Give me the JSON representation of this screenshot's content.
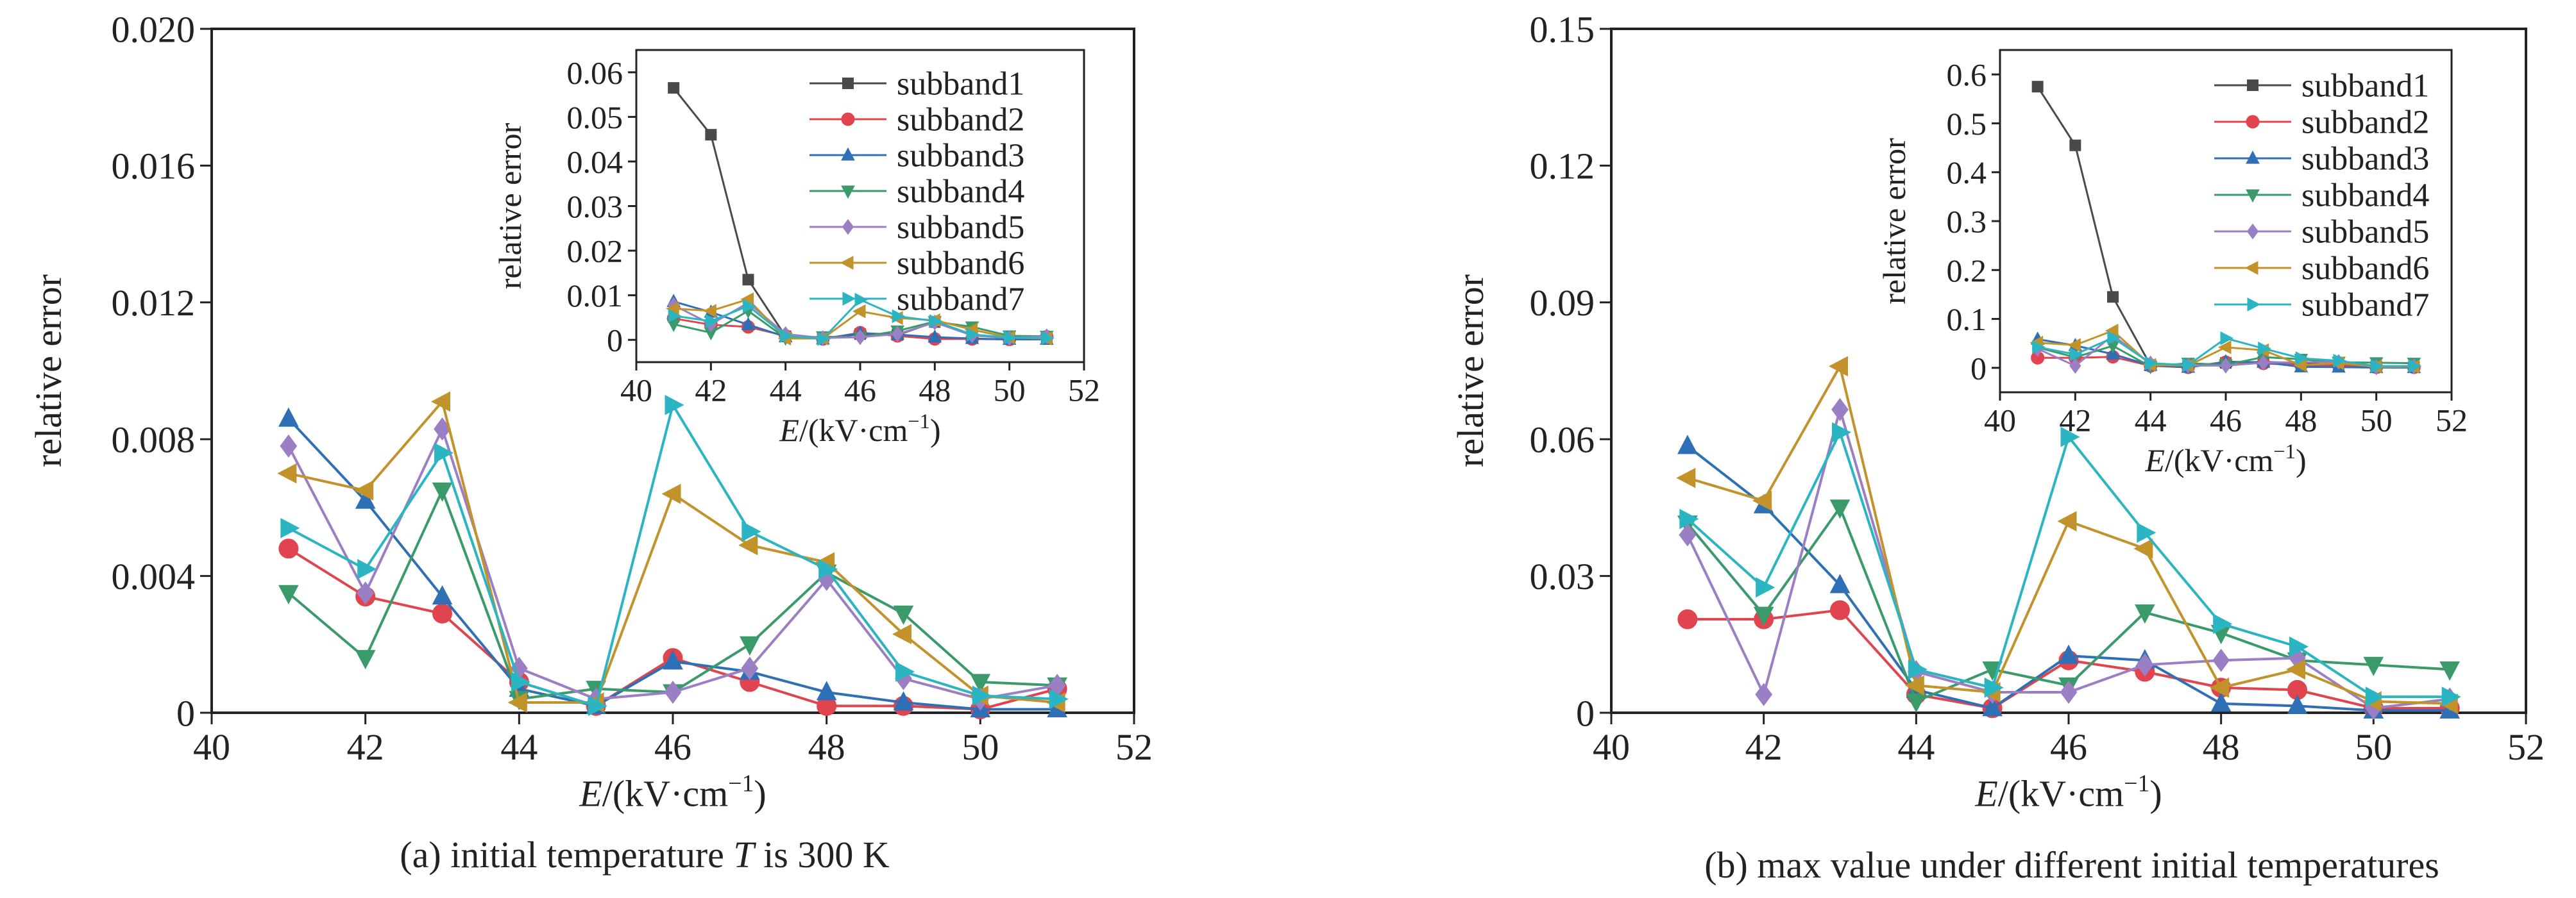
{
  "panels": [
    {
      "caption_pre": "(a) initial temperature ",
      "caption_var": "T",
      "caption_post": " is 300 K"
    },
    {
      "caption_pre": "(b) max value under different initial temperatures",
      "caption_var": "",
      "caption_post": ""
    }
  ],
  "series_style": [
    {
      "name": "subband1",
      "color": "#4a4a4a",
      "marker": "square"
    },
    {
      "name": "subband2",
      "color": "#e0454f",
      "marker": "circle"
    },
    {
      "name": "subband3",
      "color": "#2f6fb5",
      "marker": "triangle-up"
    },
    {
      "name": "subband4",
      "color": "#3a9a6a",
      "marker": "triangle-down"
    },
    {
      "name": "subband5",
      "color": "#9b7fc4",
      "marker": "diamond"
    },
    {
      "name": "subband6",
      "color": "#c2922b",
      "marker": "triangle-left"
    },
    {
      "name": "subband7",
      "color": "#2bb5c2",
      "marker": "triangle-right"
    }
  ],
  "chart_data": [
    {
      "type": "line",
      "panel": "a-main",
      "xlabel_var": "E",
      "xlabel_unit": "/(kV·cm",
      "xlabel_sup": "−1",
      "xlabel_close": ")",
      "ylabel": "relative error",
      "xlim": [
        40,
        52
      ],
      "ylim": [
        0,
        0.02
      ],
      "xticks": [
        "40",
        "42",
        "44",
        "46",
        "48",
        "50",
        "52"
      ],
      "yticks": [
        "0",
        "0.004",
        "0.008",
        "0.012",
        "0.016",
        "0.020"
      ],
      "x": [
        41,
        42,
        43,
        44,
        45,
        46,
        47,
        48,
        49,
        50,
        51
      ],
      "series": [
        {
          "name": "subband2",
          "values": [
            0.0048,
            0.0034,
            0.0029,
            0.0009,
            0.0002,
            0.0016,
            0.0009,
            0.0002,
            0.0002,
            0.0001,
            0.0007
          ]
        },
        {
          "name": "subband3",
          "values": [
            0.0086,
            0.0062,
            0.0034,
            0.0007,
            0.0002,
            0.0015,
            0.0012,
            0.0006,
            0.0003,
            0.0001,
            0.0001
          ]
        },
        {
          "name": "subband4",
          "values": [
            0.0035,
            0.0016,
            0.0065,
            0.0004,
            0.0007,
            0.0006,
            0.002,
            0.0041,
            0.0029,
            0.0009,
            0.0008
          ]
        },
        {
          "name": "subband5",
          "values": [
            0.0078,
            0.0035,
            0.0083,
            0.0013,
            0.0004,
            0.0006,
            0.0013,
            0.0039,
            0.001,
            0.0004,
            0.0008
          ]
        },
        {
          "name": "subband6",
          "values": [
            0.007,
            0.0065,
            0.0091,
            0.0003,
            0.0003,
            0.0064,
            0.0049,
            0.0044,
            0.0023,
            0.0005,
            0.0003
          ]
        },
        {
          "name": "subband7",
          "values": [
            0.0054,
            0.0042,
            0.0076,
            0.0009,
            0.0002,
            0.009,
            0.0053,
            0.0042,
            0.0012,
            0.0005,
            0.0004
          ]
        }
      ]
    },
    {
      "type": "line",
      "panel": "a-inset",
      "xlabel_var": "E",
      "xlabel_unit": "/(kV·cm",
      "xlabel_sup": "−1",
      "xlabel_close": ")",
      "ylabel": "relative error",
      "xlim": [
        40,
        52
      ],
      "ylim": [
        -0.005,
        0.065
      ],
      "xticks": [
        "40",
        "42",
        "44",
        "46",
        "48",
        "50",
        "52"
      ],
      "yticks": [
        "0",
        "0.01",
        "0.02",
        "0.03",
        "0.04",
        "0.05",
        "0.06"
      ],
      "x": [
        41,
        42,
        43,
        44,
        45,
        46,
        47,
        48,
        49,
        50,
        51
      ],
      "legend": "top-right",
      "series": [
        {
          "name": "subband1",
          "values": [
            0.0565,
            0.046,
            0.0135,
            0.0008,
            0.0004,
            0.0013,
            0.0011,
            0.004,
            0.001,
            0.0005,
            0.0004
          ]
        },
        {
          "name": "subband2",
          "values": [
            0.0048,
            0.0034,
            0.0029,
            0.0009,
            0.0002,
            0.0016,
            0.0009,
            0.0002,
            0.0002,
            0.0001,
            0.0007
          ]
        },
        {
          "name": "subband3",
          "values": [
            0.0086,
            0.0062,
            0.0034,
            0.0007,
            0.0002,
            0.0015,
            0.0012,
            0.0006,
            0.0003,
            0.0001,
            0.0001
          ]
        },
        {
          "name": "subband4",
          "values": [
            0.0035,
            0.0016,
            0.0065,
            0.0004,
            0.0007,
            0.0006,
            0.002,
            0.0041,
            0.0029,
            0.0009,
            0.0008
          ]
        },
        {
          "name": "subband5",
          "values": [
            0.0078,
            0.0035,
            0.0083,
            0.0013,
            0.0004,
            0.0006,
            0.0013,
            0.0039,
            0.001,
            0.0004,
            0.0008
          ]
        },
        {
          "name": "subband6",
          "values": [
            0.007,
            0.0065,
            0.0091,
            0.0003,
            0.0003,
            0.0064,
            0.0049,
            0.0044,
            0.0023,
            0.0005,
            0.0003
          ]
        },
        {
          "name": "subband7",
          "values": [
            0.0054,
            0.0042,
            0.0076,
            0.0009,
            0.0002,
            0.009,
            0.0053,
            0.0042,
            0.0012,
            0.0005,
            0.0004
          ]
        }
      ]
    },
    {
      "type": "line",
      "panel": "b-main",
      "xlabel_var": "E",
      "xlabel_unit": "/(kV·cm",
      "xlabel_sup": "−1",
      "xlabel_close": ")",
      "ylabel": "relative error",
      "xlim": [
        40,
        52
      ],
      "ylim": [
        0,
        0.15
      ],
      "xticks": [
        "40",
        "42",
        "44",
        "46",
        "48",
        "50",
        "52"
      ],
      "yticks": [
        "0",
        "0.03",
        "0.06",
        "0.09",
        "0.12",
        "0.15"
      ],
      "x": [
        41,
        42,
        43,
        44,
        45,
        46,
        47,
        48,
        49,
        50,
        51
      ],
      "series": [
        {
          "name": "subband2",
          "values": [
            0.0205,
            0.0205,
            0.0225,
            0.004,
            0.001,
            0.0115,
            0.009,
            0.0055,
            0.005,
            0.001,
            0.001
          ]
        },
        {
          "name": "subband3",
          "values": [
            0.0585,
            0.0455,
            0.028,
            0.005,
            0.001,
            0.0125,
            0.0115,
            0.002,
            0.0015,
            0.0005,
            0.0005
          ]
        },
        {
          "name": "subband4",
          "values": [
            0.0415,
            0.0215,
            0.045,
            0.0025,
            0.0095,
            0.006,
            0.022,
            0.0175,
            0.0115,
            0.0105,
            0.0095
          ]
        },
        {
          "name": "subband5",
          "values": [
            0.039,
            0.004,
            0.0665,
            0.009,
            0.0045,
            0.0045,
            0.0105,
            0.0115,
            0.012,
            0.001,
            0.003
          ]
        },
        {
          "name": "subband6",
          "values": [
            0.0515,
            0.0465,
            0.076,
            0.006,
            0.0045,
            0.042,
            0.036,
            0.0055,
            0.0095,
            0.0025,
            0.002
          ]
        },
        {
          "name": "subband7",
          "values": [
            0.0425,
            0.0275,
            0.0615,
            0.0095,
            0.0055,
            0.0605,
            0.0395,
            0.0195,
            0.0145,
            0.0035,
            0.0035
          ]
        }
      ]
    },
    {
      "type": "line",
      "panel": "b-inset",
      "xlabel_var": "E",
      "xlabel_unit": "/(kV·cm",
      "xlabel_sup": "−1",
      "xlabel_close": ")",
      "ylabel": "relative error",
      "xlim": [
        40,
        52
      ],
      "ylim": [
        -0.05,
        0.65
      ],
      "xticks": [
        "40",
        "42",
        "44",
        "46",
        "48",
        "50",
        "52"
      ],
      "yticks": [
        "0",
        "0.1",
        "0.2",
        "0.3",
        "0.4",
        "0.5",
        "0.6"
      ],
      "x": [
        41,
        42,
        43,
        44,
        45,
        46,
        47,
        48,
        49,
        50,
        51
      ],
      "legend": "top-right",
      "series": [
        {
          "name": "subband1",
          "values": [
            0.575,
            0.455,
            0.145,
            0.005,
            0.003,
            0.01,
            0.012,
            0.01,
            0.005,
            0.003,
            0.002
          ]
        },
        {
          "name": "subband2",
          "values": [
            0.0205,
            0.0205,
            0.0225,
            0.004,
            0.001,
            0.0115,
            0.009,
            0.0055,
            0.005,
            0.001,
            0.001
          ]
        },
        {
          "name": "subband3",
          "values": [
            0.0585,
            0.0455,
            0.028,
            0.005,
            0.001,
            0.0125,
            0.0115,
            0.002,
            0.0015,
            0.0005,
            0.0005
          ]
        },
        {
          "name": "subband4",
          "values": [
            0.0415,
            0.0215,
            0.045,
            0.0025,
            0.0095,
            0.006,
            0.022,
            0.0175,
            0.0115,
            0.0105,
            0.0095
          ]
        },
        {
          "name": "subband5",
          "values": [
            0.039,
            0.004,
            0.0665,
            0.009,
            0.0045,
            0.0045,
            0.0105,
            0.0115,
            0.012,
            0.001,
            0.003
          ]
        },
        {
          "name": "subband6",
          "values": [
            0.0515,
            0.0465,
            0.076,
            0.006,
            0.0045,
            0.042,
            0.036,
            0.0055,
            0.0095,
            0.0025,
            0.002
          ]
        },
        {
          "name": "subband7",
          "values": [
            0.0425,
            0.0275,
            0.0615,
            0.0095,
            0.0055,
            0.0605,
            0.0395,
            0.0195,
            0.0145,
            0.0035,
            0.0035
          ]
        }
      ]
    }
  ]
}
